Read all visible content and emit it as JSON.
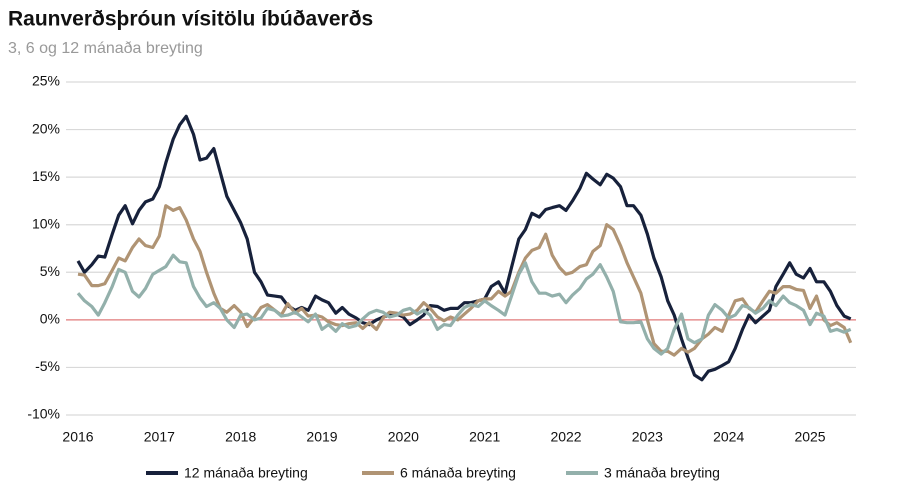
{
  "chart_data": {
    "type": "line",
    "title": "Raunverðsþróun vísitölu íbúðaverðs",
    "subtitle": "3, 6 og 12 mánaða breyting",
    "x": [
      2016,
      2016.08,
      2016.17,
      2016.25,
      2016.33,
      2016.42,
      2016.5,
      2016.58,
      2016.67,
      2016.75,
      2016.83,
      2016.92,
      2017,
      2017.08,
      2017.17,
      2017.25,
      2017.33,
      2017.42,
      2017.5,
      2017.58,
      2017.67,
      2017.75,
      2017.83,
      2017.92,
      2018,
      2018.08,
      2018.17,
      2018.25,
      2018.33,
      2018.42,
      2018.5,
      2018.58,
      2018.67,
      2018.75,
      2018.83,
      2018.92,
      2019,
      2019.08,
      2019.17,
      2019.25,
      2019.33,
      2019.42,
      2019.5,
      2019.58,
      2019.67,
      2019.75,
      2019.83,
      2019.92,
      2020,
      2020.08,
      2020.17,
      2020.25,
      2020.33,
      2020.42,
      2020.5,
      2020.58,
      2020.67,
      2020.75,
      2020.83,
      2020.92,
      2021,
      2021.08,
      2021.17,
      2021.25,
      2021.33,
      2021.42,
      2021.5,
      2021.58,
      2021.67,
      2021.75,
      2021.83,
      2021.92,
      2022,
      2022.08,
      2022.17,
      2022.25,
      2022.33,
      2022.42,
      2022.5,
      2022.58,
      2022.67,
      2022.75,
      2022.83,
      2022.92,
      2023,
      2023.08,
      2023.17,
      2023.25,
      2023.33,
      2023.42,
      2023.5,
      2023.58,
      2023.67,
      2023.75,
      2023.83,
      2023.92,
      2024,
      2024.08,
      2024.17,
      2024.25,
      2024.33,
      2024.42,
      2024.5,
      2024.58,
      2024.67,
      2024.75,
      2024.83,
      2024.92,
      2025,
      2025.08,
      2025.17,
      2025.25,
      2025.33,
      2025.42,
      2025.5
    ],
    "series": [
      {
        "name": "12 mánaða breyting",
        "color": "#17213b",
        "values": [
          6.2,
          5.0,
          5.8,
          6.7,
          6.6,
          9.0,
          11.0,
          12.0,
          10.1,
          11.5,
          12.4,
          12.7,
          14.0,
          16.5,
          19.0,
          20.5,
          21.4,
          19.5,
          16.8,
          17.0,
          18.0,
          15.5,
          13.0,
          11.5,
          10.2,
          8.5,
          5.0,
          4.0,
          2.6,
          2.5,
          2.4,
          1.5,
          1.0,
          1.3,
          1.0,
          2.5,
          2.1,
          1.8,
          0.7,
          1.3,
          0.6,
          0.2,
          -0.3,
          -0.5,
          0.0,
          0.3,
          0.5,
          0.6,
          0.3,
          -0.5,
          0.0,
          0.5,
          1.5,
          1.4,
          1.0,
          1.2,
          1.2,
          1.8,
          1.8,
          2.0,
          2.2,
          3.5,
          4.0,
          2.8,
          5.5,
          8.5,
          9.5,
          11.2,
          10.8,
          11.6,
          11.8,
          12.0,
          11.5,
          12.5,
          13.8,
          15.4,
          14.8,
          14.2,
          15.3,
          14.9,
          14.0,
          12.0,
          12.0,
          11.0,
          9.0,
          6.5,
          4.5,
          2.0,
          0.5,
          -2.0,
          -4.0,
          -5.8,
          -6.3,
          -5.4,
          -5.2,
          -4.8,
          -4.4,
          -3.0,
          -1.0,
          0.5,
          -0.3,
          0.4,
          1.0,
          3.5,
          4.8,
          6.0,
          4.8,
          4.4,
          5.4,
          4.0,
          4.0,
          3.0,
          1.5,
          0.4,
          0.1
        ]
      },
      {
        "name": "6 mánaða breyting",
        "color": "#b09474",
        "values": [
          4.8,
          4.7,
          3.6,
          3.6,
          3.8,
          5.2,
          6.5,
          6.2,
          7.6,
          8.5,
          7.8,
          7.6,
          8.8,
          12.0,
          11.5,
          11.8,
          10.5,
          8.5,
          7.2,
          5.0,
          2.8,
          1.2,
          0.8,
          1.5,
          0.8,
          -0.7,
          0.3,
          1.3,
          1.6,
          1.0,
          0.5,
          1.7,
          0.7,
          1.2,
          0.4,
          0.5,
          0.3,
          -0.2,
          -0.5,
          -0.6,
          -0.4,
          -0.3,
          -0.9,
          -0.3,
          -1.0,
          0.2,
          0.8,
          0.7,
          0.5,
          0.6,
          1.0,
          1.8,
          1.2,
          0.3,
          -0.1,
          0.3,
          0.0,
          0.6,
          1.2,
          2.0,
          2.2,
          2.2,
          3.0,
          2.5,
          3.0,
          5.0,
          6.5,
          7.3,
          7.6,
          9.0,
          6.8,
          5.5,
          4.8,
          5.0,
          5.6,
          5.8,
          7.2,
          7.8,
          10.0,
          9.5,
          7.8,
          6.0,
          4.5,
          2.8,
          0.0,
          -2.5,
          -3.3,
          -3.3,
          -3.7,
          -3.0,
          -3.4,
          -3.0,
          -2.0,
          -1.5,
          -0.8,
          -1.2,
          0.5,
          2.0,
          2.2,
          1.2,
          0.8,
          2.0,
          3.0,
          2.8,
          3.5,
          3.5,
          3.2,
          3.1,
          1.2,
          2.5,
          0.0,
          -0.6,
          -0.3,
          -0.8,
          -2.4
        ]
      },
      {
        "name": "3 mánaða breyting",
        "color": "#93b0ab",
        "values": [
          2.8,
          2.0,
          1.4,
          0.5,
          1.8,
          3.5,
          5.3,
          5.0,
          3.0,
          2.4,
          3.3,
          4.8,
          5.2,
          5.6,
          6.8,
          6.1,
          6.0,
          3.5,
          2.3,
          1.4,
          1.8,
          1.2,
          0.0,
          -0.8,
          0.5,
          0.6,
          0.0,
          0.2,
          1.2,
          1.0,
          0.4,
          0.5,
          0.8,
          0.3,
          -0.2,
          0.6,
          -1.0,
          -0.5,
          -1.2,
          -0.4,
          -0.8,
          -0.6,
          0.1,
          0.7,
          1.0,
          0.8,
          0.3,
          0.5,
          1.0,
          1.2,
          0.6,
          1.0,
          0.5,
          -1.0,
          -0.5,
          -0.6,
          0.5,
          1.3,
          1.6,
          1.4,
          2.0,
          1.5,
          1.0,
          0.5,
          2.5,
          4.8,
          6.0,
          4.0,
          2.8,
          2.8,
          2.5,
          2.7,
          1.8,
          2.6,
          3.3,
          4.3,
          4.8,
          5.8,
          4.5,
          3.0,
          -0.2,
          -0.3,
          -0.3,
          -0.2,
          -2.0,
          -3.0,
          -3.6,
          -3.0,
          -1.0,
          0.6,
          -2.0,
          -2.4,
          -2.0,
          0.5,
          1.6,
          1.0,
          0.2,
          0.5,
          1.5,
          1.3,
          0.7,
          1.2,
          2.0,
          1.5,
          2.5,
          1.8,
          1.5,
          1.0,
          -0.5,
          0.7,
          0.4,
          -1.2,
          -1.0,
          -1.3,
          -1.0
        ]
      }
    ],
    "xlim": [
      2016,
      2025.5
    ],
    "xticks": [
      2016,
      2017,
      2018,
      2019,
      2020,
      2021,
      2022,
      2023,
      2024,
      2025
    ],
    "ylim": [
      -10,
      25
    ],
    "yticks": [
      {
        "value": -10,
        "label": "-10%"
      },
      {
        "value": -5,
        "label": "-5%"
      },
      {
        "value": 0,
        "label": "0%"
      },
      {
        "value": 5,
        "label": "5%"
      },
      {
        "value": 10,
        "label": "10%"
      },
      {
        "value": 15,
        "label": "15%"
      },
      {
        "value": 20,
        "label": "20%"
      },
      {
        "value": 25,
        "label": "25%"
      }
    ],
    "grid": true,
    "zero_line_color": "#e07a7a",
    "legend": "bottom"
  }
}
